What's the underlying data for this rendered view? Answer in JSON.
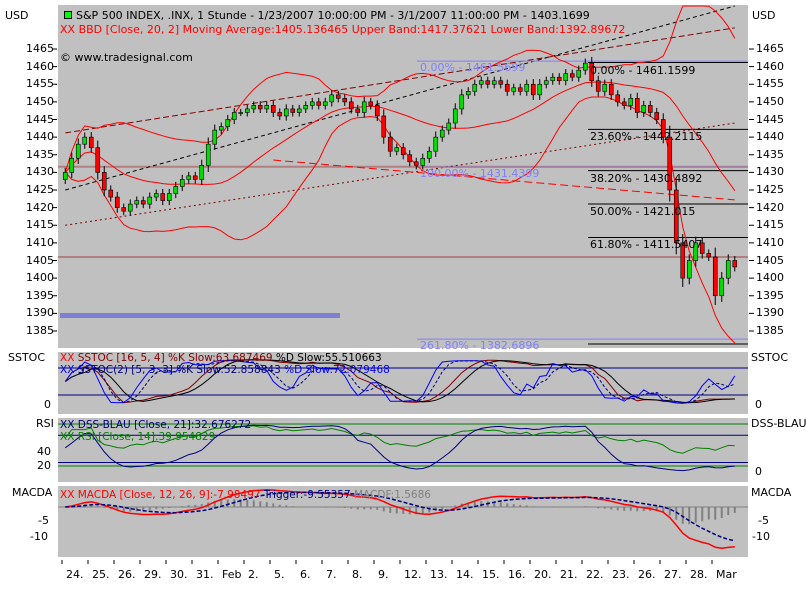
{
  "header": {
    "currency": "USD",
    "title": "S&P 500 INDEX, .INX, 1 Stunde - 1/23/2007 10:00:00 PM - 3/1/2007 11:00:00 PM - 1403.1699",
    "bbd_legend": "BBD [Close, 20, 2] Moving Average:1405.136465 Upper Band:1417.37621 Lower Band:1392.89672",
    "copyright": "© www.tradesignal.com",
    "legend_marker": "XX"
  },
  "panels": {
    "sstoc": {
      "label": "SSTOC",
      "legend1": "SSTOC [16, 5, 4] %K Slow:63.687469",
      "legend1b": "%D Slow:55.510663",
      "legend2": "SSTOC(2) [5, 3, 3] %K Slow:52.858843",
      "legend2b": "%D Slow:72.079468",
      "ticks": [
        "0"
      ]
    },
    "rsi": {
      "label": "RSI",
      "right_label": "DSS-BLAU",
      "legend1": "DSS-BLAU [Close, 21]:32.676272",
      "legend2": "RSI [Close, 14]:39.954829",
      "ticks": [
        "40",
        "20"
      ],
      "right_ticks": [
        "0"
      ]
    },
    "macd": {
      "label": "MACDA",
      "legend1": "MACDA [Close, 12, 26, 9]:-7.98497",
      "legend2": "Trigger:-9.55357",
      "legend3": "MACDF:1.5686",
      "ticks": [
        "-5",
        "-10"
      ]
    }
  },
  "colors": {
    "panel_bg": "#c0c0c0",
    "up": "#00e000",
    "down": "#ff0000",
    "bands": "#ff0000",
    "fib_blue": "#8080ff",
    "fib_black": "#000000",
    "level_brown": "#b08080",
    "purple_bar": "#8080d0",
    "sstoc": "#800000",
    "sstoc_d": "#000000",
    "sstoc2": "#0000ff",
    "dss": "#000080",
    "rsi": "#008000",
    "macd": "#ff0000",
    "trigger": "#000080",
    "macdf": "#808080"
  },
  "chart_data": {
    "type": "candlestick",
    "price_axis": {
      "unit": "USD",
      "ticks": [
        1465,
        1460,
        1455,
        1450,
        1445,
        1440,
        1435,
        1430,
        1425,
        1420,
        1415,
        1410,
        1405,
        1400,
        1395,
        1390,
        1385
      ]
    },
    "x_labels": [
      "24.",
      "25.",
      "26.",
      "29.",
      "30.",
      "31.",
      "Feb",
      "2.",
      "5.",
      "6.",
      "7.",
      "8.",
      "9.",
      "12.",
      "13.",
      "14.",
      "15.",
      "16.",
      "20.",
      "21.",
      "22.",
      "23.",
      "26.",
      "27.",
      "28.",
      "Mar"
    ],
    "bars_per_day": 4,
    "closes": [
      1430,
      1434,
      1438,
      1440,
      1437,
      1430,
      1425,
      1423,
      1420,
      1419,
      1421,
      1422,
      1421,
      1423,
      1424,
      1422,
      1424,
      1426,
      1428,
      1429,
      1428,
      1432,
      1438,
      1442,
      1443,
      1445,
      1447,
      1447,
      1448,
      1449,
      1448,
      1449,
      1447,
      1446,
      1448,
      1447,
      1448,
      1449,
      1450,
      1449,
      1450,
      1452,
      1451,
      1450,
      1448,
      1447,
      1450,
      1449,
      1446,
      1440,
      1436,
      1437,
      1435,
      1433,
      1432,
      1434,
      1436,
      1440,
      1442,
      1444,
      1448,
      1452,
      1453,
      1455,
      1456,
      1455,
      1456,
      1455,
      1453,
      1454,
      1453,
      1455,
      1452,
      1455,
      1456,
      1457,
      1456,
      1458,
      1457,
      1459,
      1461,
      1456,
      1453,
      1455,
      1452,
      1450,
      1449,
      1451,
      1447,
      1449,
      1447,
      1445,
      1440,
      1425,
      1410,
      1400,
      1405,
      1410,
      1407,
      1406,
      1395,
      1400,
      1405,
      1403.1699
    ],
    "fib_blue": [
      {
        "label": "0.00% - 1461.5699",
        "price": 1461.5699
      },
      {
        "label": "100.00% - 1431.4399",
        "price": 1431.4399
      },
      {
        "label": "261.80% - 1382.6896",
        "price": 1382.6896
      }
    ],
    "fib_black": [
      {
        "label": "0.00% - 1461.1599",
        "price": 1461.1599
      },
      {
        "label": "23.60% - 1442.2115",
        "price": 1442.2115
      },
      {
        "label": "38.20% - 1430.4892",
        "price": 1430.4892
      },
      {
        "label": "50.00% - 1421.015",
        "price": 1421.015
      },
      {
        "label": "61.80% - 1411.5407",
        "price": 1411.5407
      },
      {
        "label": "",
        "price": 1381.1
      }
    ],
    "horizontal_levels": [
      1431.6,
      1406
    ],
    "marker_bar_price": 1389.4,
    "trendlines": [
      {
        "style": "dashed-black",
        "from": [
          0,
          1425
        ],
        "to": [
          103,
          1477.5
        ]
      },
      {
        "style": "dashed-darkred",
        "from": [
          0,
          1441.2
        ],
        "to": [
          103,
          1471
        ]
      },
      {
        "style": "dotted-darkred",
        "from": [
          0,
          1415
        ],
        "to": [
          103,
          1444
        ]
      },
      {
        "style": "dashed-red",
        "from": [
          32,
          1433.5
        ],
        "to": [
          103,
          1422.2
        ]
      }
    ],
    "sstoc_levels": [
      80,
      20
    ],
    "rsi_levels": {
      "green": [
        80,
        20
      ],
      "blue": [
        64,
        25
      ]
    }
  }
}
